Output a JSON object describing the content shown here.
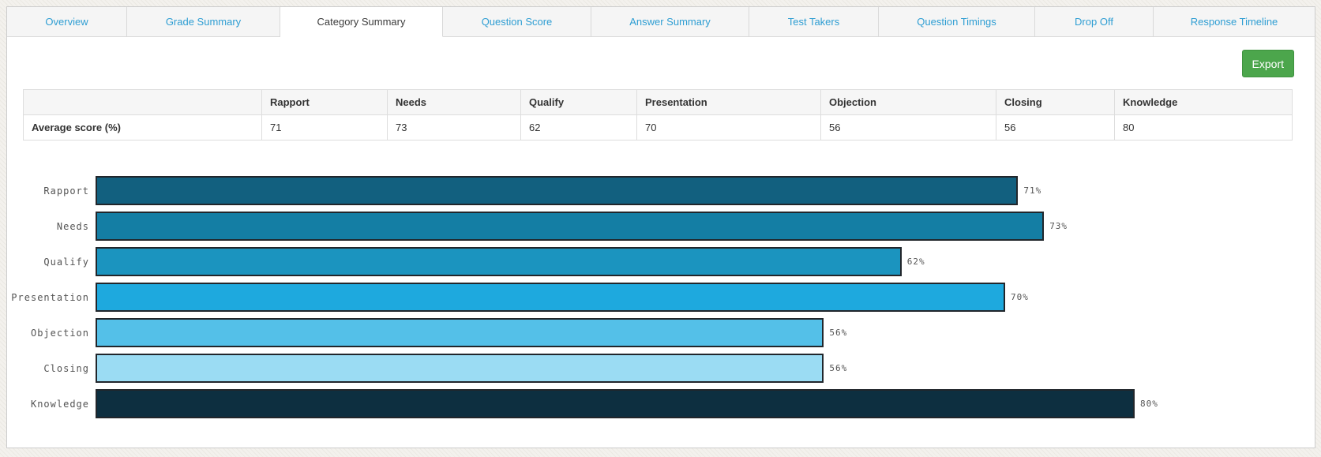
{
  "tabs": {
    "active_index": 2,
    "items": [
      {
        "label": "Overview"
      },
      {
        "label": "Grade Summary"
      },
      {
        "label": "Category Summary"
      },
      {
        "label": "Question Score"
      },
      {
        "label": "Answer Summary"
      },
      {
        "label": "Test Takers"
      },
      {
        "label": "Question Timings"
      },
      {
        "label": "Drop Off"
      },
      {
        "label": "Response Timeline"
      }
    ]
  },
  "toolbar": {
    "export_label": "Export"
  },
  "table": {
    "row_header": "Average score (%)",
    "columns": [
      "Rapport",
      "Needs",
      "Qualify",
      "Presentation",
      "Objection",
      "Closing",
      "Knowledge"
    ],
    "values": [
      "71",
      "73",
      "62",
      "70",
      "56",
      "56",
      "80"
    ]
  },
  "chart_data": {
    "type": "bar",
    "orientation": "horizontal",
    "title": "",
    "categories": [
      "Rapport",
      "Needs",
      "Qualify",
      "Presentation",
      "Objection",
      "Closing",
      "Knowledge"
    ],
    "values": [
      71,
      73,
      62,
      70,
      56,
      56,
      80
    ],
    "value_suffix": "%",
    "xlim": [
      0,
      100
    ],
    "grid": false,
    "legend": "none",
    "bar_colors": [
      "#12607f",
      "#147ea4",
      "#1b94bf",
      "#1ea9de",
      "#54c0e8",
      "#9bdcf3",
      "#0d2f40"
    ],
    "bar_border_color": "#21262b",
    "label_color": "#545454"
  },
  "colors": {
    "tab_link": "#2f9ed3",
    "active_tab_text": "#3c3c3c",
    "export_button": "#4ca64c",
    "export_button_border": "#3f923f",
    "panel_border": "#cccccc"
  }
}
